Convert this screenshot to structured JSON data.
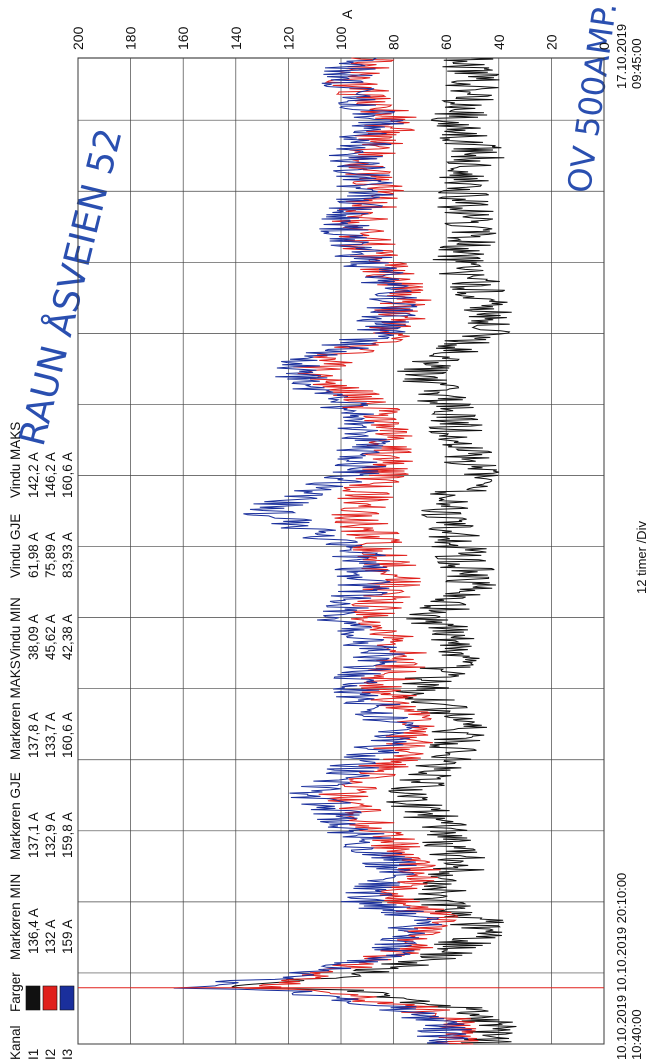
{
  "handwritten": {
    "title": "RAUN ÅSVEIEN 52",
    "note": "OV 500AMP."
  },
  "table": {
    "headers": [
      "Kanal",
      "Farger",
      "Markøren MIN",
      "Markøren GJE",
      "Markøren MAKS",
      "Vindu MIN",
      "Vindu GJE",
      "Vindu MAKS"
    ],
    "rows": [
      {
        "channel": "I1",
        "color": "#111111",
        "marker_min": "136,4 A",
        "marker_avg": "137,1 A",
        "marker_max": "137,8 A",
        "win_min": "38,09 A",
        "win_avg": "61,98 A",
        "win_max": "142,2 A"
      },
      {
        "channel": "I2",
        "color": "#e0201c",
        "marker_min": "132 A",
        "marker_avg": "132,9 A",
        "marker_max": "133,7 A",
        "win_min": "45,62 A",
        "win_avg": "75,89 A",
        "win_max": "146,2 A"
      },
      {
        "channel": "I3",
        "color": "#1a2f9c",
        "marker_min": "159 A",
        "marker_avg": "159,8 A",
        "marker_max": "160,6 A",
        "win_min": "42,38 A",
        "win_avg": "83,93 A",
        "win_max": "160,6 A"
      }
    ]
  },
  "footer": {
    "start_time": "10.10.2019\n10:40:00",
    "end_time": "17.10.2019\n09:45:00",
    "cursor_time": "10.10.2019 20:10:00",
    "scale": "12 timer /Div"
  },
  "chart_data": {
    "type": "line",
    "ylabel": "A",
    "ylim": [
      0,
      200
    ],
    "yticks": [
      0,
      20,
      40,
      60,
      80,
      100,
      120,
      140,
      160,
      180,
      200
    ],
    "xlim": [
      "10.10.2019 10:40:00",
      "17.10.2019 09:45:00"
    ],
    "x_division_hours": 12,
    "cursor": "10.10.2019 20:10:00",
    "grid": true,
    "series": [
      {
        "name": "I1",
        "color": "#111111",
        "x_hours": [
          0,
          3,
          6,
          9,
          9.5,
          12,
          15,
          18,
          21,
          24,
          30,
          36,
          42,
          48,
          54,
          60,
          66,
          72,
          78,
          84,
          90,
          96,
          102,
          108,
          114,
          120,
          126,
          132,
          138,
          144,
          150,
          156,
          162,
          166.5
        ],
        "values": [
          45,
          42,
          55,
          95,
          137,
          90,
          60,
          50,
          48,
          65,
          55,
          60,
          75,
          60,
          55,
          70,
          55,
          65,
          50,
          55,
          60,
          50,
          55,
          60,
          70,
          45,
          45,
          55,
          50,
          55,
          48,
          55,
          50,
          52
        ]
      },
      {
        "name": "I2",
        "color": "#e0201c",
        "x_hours": [
          0,
          3,
          6,
          9,
          9.5,
          12,
          15,
          18,
          21,
          24,
          30,
          36,
          42,
          48,
          54,
          60,
          66,
          72,
          78,
          84,
          90,
          96,
          102,
          108,
          114,
          120,
          126,
          132,
          138,
          144,
          150,
          156,
          162,
          166.5
        ],
        "values": [
          58,
          55,
          70,
          110,
          133,
          105,
          80,
          70,
          60,
          80,
          70,
          85,
          100,
          80,
          70,
          85,
          75,
          90,
          80,
          85,
          95,
          85,
          80,
          90,
          110,
          80,
          75,
          85,
          95,
          85,
          90,
          80,
          95,
          90
        ]
      },
      {
        "name": "I3",
        "color": "#1a2f9c",
        "x_hours": [
          0,
          3,
          6,
          9,
          9.5,
          12,
          15,
          18,
          21,
          24,
          30,
          36,
          42,
          48,
          54,
          60,
          66,
          72,
          78,
          84,
          90,
          96,
          102,
          108,
          114,
          120,
          126,
          132,
          138,
          144,
          150,
          156,
          162,
          166.5
        ],
        "values": [
          62,
          60,
          78,
          118,
          160,
          110,
          85,
          75,
          70,
          90,
          80,
          95,
          110,
          90,
          80,
          95,
          85,
          100,
          90,
          95,
          130,
          95,
          90,
          100,
          120,
          85,
          80,
          90,
          100,
          90,
          95,
          85,
          100,
          95
        ]
      }
    ]
  }
}
